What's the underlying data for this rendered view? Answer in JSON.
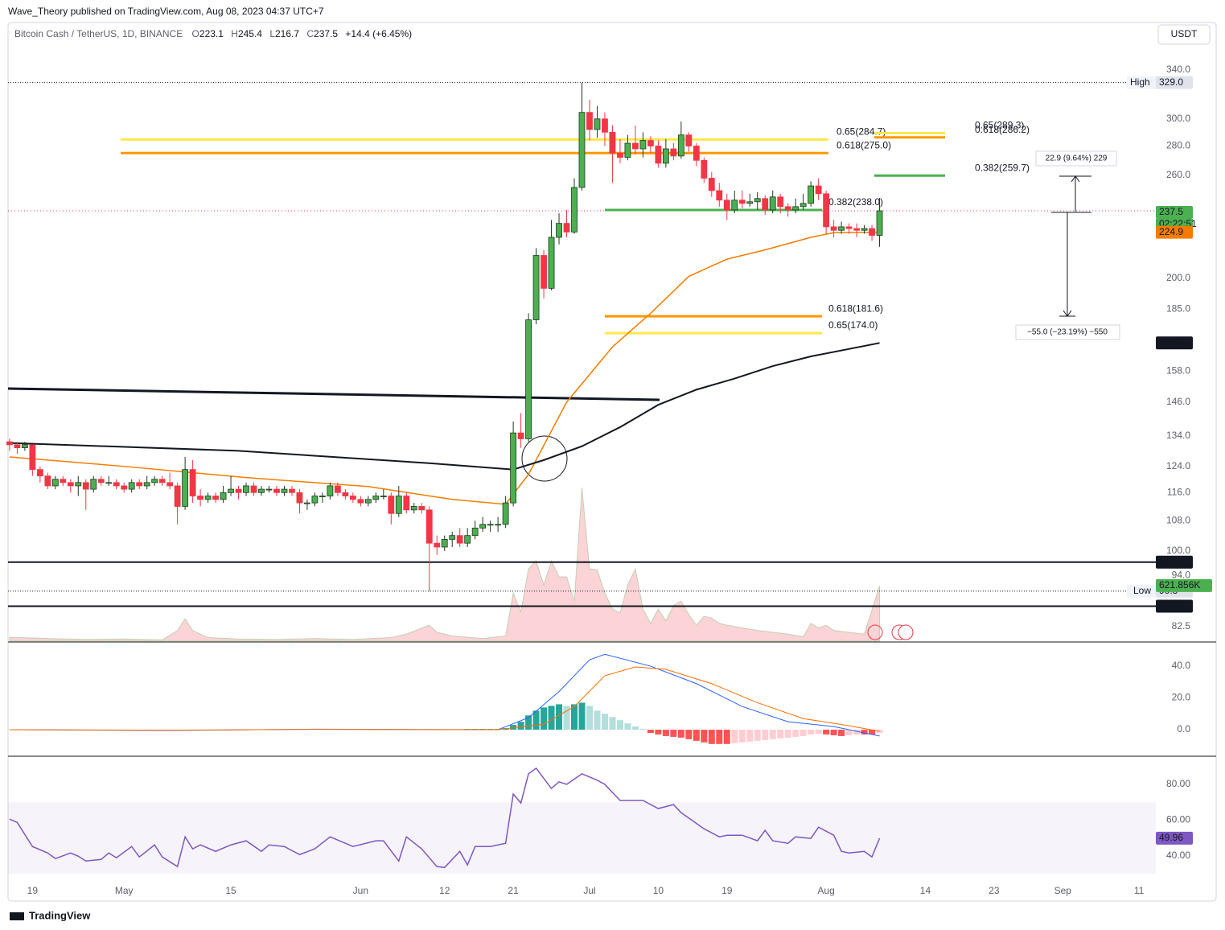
{
  "header": {
    "publisher": "Wave_Theory published on TradingView.com, Aug 08, 2023 04:37 UTC+7",
    "symbol": "Bitcoin Cash / TetherUS, 1D, BINANCE",
    "ohlc_letters": [
      "O",
      "H",
      "L",
      "C"
    ],
    "change": "+14.4 (+6.45%)",
    "currency": "USDT",
    "footer": "TradingView"
  },
  "chart_data": {
    "type": "candlestick",
    "log_scale": true,
    "up_color": "#4caf50",
    "down_color": "#f23645",
    "xlim": [
      -0.2,
      150.2
    ],
    "ylim": [
      79.5,
      359
    ],
    "xticks": [
      {
        "value": 3,
        "label": "19"
      },
      {
        "value": 15,
        "label": "May"
      },
      {
        "value": 29,
        "label": "15"
      },
      {
        "value": 46,
        "label": "Jun"
      },
      {
        "value": 57,
        "label": "12"
      },
      {
        "value": 66,
        "label": "21"
      },
      {
        "value": 76,
        "label": "Jul"
      },
      {
        "value": 85,
        "label": "10"
      },
      {
        "value": 94,
        "label": "19"
      },
      {
        "value": 107,
        "label": "Aug"
      },
      {
        "value": 120,
        "label": "14"
      },
      {
        "value": 129,
        "label": "23"
      },
      {
        "value": 138,
        "label": "Sep"
      },
      {
        "value": 148,
        "label": "11"
      }
    ],
    "yticks": [
      {
        "value": 340,
        "label": "340.0"
      },
      {
        "value": 300,
        "label": "300.0"
      },
      {
        "value": 280,
        "label": "280.0"
      },
      {
        "value": 260,
        "label": "260.0"
      },
      {
        "value": 200,
        "label": "200.0"
      },
      {
        "value": 185,
        "label": "185.0"
      },
      {
        "value": 158,
        "label": "158.0"
      },
      {
        "value": 146,
        "label": "146.0"
      },
      {
        "value": 134,
        "label": "134.0"
      },
      {
        "value": 124,
        "label": "124.0"
      },
      {
        "value": 116,
        "label": "116.0"
      },
      {
        "value": 108,
        "label": "108.0"
      },
      {
        "value": 100,
        "label": "100.0"
      },
      {
        "value": 94,
        "label": "94.0"
      },
      82.5
    ],
    "ohlc": [
      [
        132,
        133,
        129,
        131
      ],
      [
        131,
        132,
        128,
        130
      ],
      [
        130,
        132,
        129,
        131
      ],
      [
        131,
        131,
        121,
        123
      ],
      [
        123,
        124,
        119,
        121
      ],
      [
        121,
        122,
        117,
        118
      ],
      [
        118,
        121,
        117,
        120
      ],
      [
        120,
        121,
        118,
        119
      ],
      [
        119,
        120,
        116,
        118
      ],
      [
        118,
        121,
        115,
        119
      ],
      [
        119,
        120,
        111,
        117
      ],
      [
        117,
        121,
        116,
        120
      ],
      [
        120,
        121,
        118,
        119
      ],
      [
        119,
        121,
        118,
        119
      ],
      [
        119,
        120,
        117,
        118
      ],
      [
        118,
        119,
        116,
        117
      ],
      [
        117,
        120,
        116,
        119
      ],
      [
        119,
        120,
        117,
        118
      ],
      [
        118,
        121,
        117,
        119
      ],
      [
        119,
        121,
        118,
        120
      ],
      [
        120,
        121,
        118,
        119
      ],
      [
        119,
        122,
        117,
        118
      ],
      [
        118,
        119,
        107,
        112
      ],
      [
        112,
        127,
        111,
        123
      ],
      [
        123,
        126,
        113,
        115
      ],
      [
        115,
        117,
        112,
        114
      ],
      [
        114,
        116,
        113,
        115
      ],
      [
        115,
        116,
        113,
        114
      ],
      [
        114,
        118,
        113,
        116
      ],
      [
        116,
        121,
        115,
        117
      ],
      [
        117,
        118,
        114,
        116
      ],
      [
        116,
        119,
        115,
        118
      ],
      [
        118,
        119,
        115,
        116
      ],
      [
        116,
        118,
        115,
        117
      ],
      [
        117,
        118,
        116,
        117
      ],
      [
        117,
        118,
        115,
        116
      ],
      [
        116,
        118,
        115,
        117
      ],
      [
        117,
        118,
        115,
        116
      ],
      [
        116,
        117,
        110,
        113
      ],
      [
        113,
        114,
        111,
        113
      ],
      [
        113,
        116,
        112,
        115
      ],
      [
        115,
        116,
        113,
        115
      ],
      [
        115,
        119,
        114,
        118
      ],
      [
        118,
        119,
        115,
        116
      ],
      [
        116,
        117,
        114,
        115
      ],
      [
        115,
        116,
        113,
        114
      ],
      [
        114,
        115,
        112,
        113
      ],
      [
        113,
        115,
        112,
        114
      ],
      [
        114,
        116,
        113,
        115
      ],
      [
        115,
        117,
        114,
        115
      ],
      [
        115,
        116,
        107,
        110
      ],
      [
        110,
        118,
        109,
        115
      ],
      [
        115,
        116,
        110,
        111
      ],
      [
        111,
        113,
        110,
        112
      ],
      [
        112,
        113,
        110,
        111
      ],
      [
        111,
        112,
        90.3,
        102
      ],
      [
        102,
        104,
        99,
        101
      ],
      [
        101,
        104,
        100,
        103
      ],
      [
        103,
        105,
        101,
        104
      ],
      [
        104,
        106,
        101,
        102
      ],
      [
        102,
        106,
        101,
        104
      ],
      [
        104,
        108,
        103,
        106
      ],
      [
        106,
        109,
        105,
        107
      ],
      [
        107,
        108,
        105,
        107
      ],
      [
        107,
        109,
        105,
        107
      ],
      [
        107,
        115,
        106,
        113
      ],
      [
        113,
        139,
        112,
        135
      ],
      [
        135,
        142,
        130,
        133
      ],
      [
        133,
        183,
        132,
        180
      ],
      [
        180,
        216,
        178,
        212
      ],
      [
        212,
        215,
        190,
        195
      ],
      [
        195,
        232,
        194,
        222
      ],
      [
        222,
        236,
        218,
        230
      ],
      [
        230,
        238,
        222,
        225
      ],
      [
        225,
        258,
        224,
        252
      ],
      [
        252,
        329,
        250,
        305
      ],
      [
        305,
        315,
        284,
        292
      ],
      [
        292,
        310,
        286,
        300
      ],
      [
        300,
        305,
        280,
        290
      ],
      [
        290,
        295,
        255,
        275
      ],
      [
        275,
        285,
        268,
        272
      ],
      [
        272,
        288,
        270,
        282
      ],
      [
        282,
        295,
        274,
        278
      ],
      [
        278,
        290,
        272,
        284
      ],
      [
        284,
        287,
        275,
        280
      ],
      [
        280,
        284,
        265,
        268
      ],
      [
        268,
        285,
        265,
        278
      ],
      [
        278,
        282,
        270,
        273
      ],
      [
        273,
        298,
        271,
        288
      ],
      [
        288,
        290,
        276,
        280
      ],
      [
        280,
        282,
        266,
        270
      ],
      [
        270,
        272,
        255,
        258
      ],
      [
        258,
        262,
        246,
        250
      ],
      [
        250,
        255,
        240,
        244
      ],
      [
        244,
        248,
        232,
        238
      ],
      [
        238,
        250,
        236,
        244
      ],
      [
        244,
        250,
        239,
        242
      ],
      [
        242,
        248,
        240,
        243
      ],
      [
        243,
        249,
        238,
        245
      ],
      [
        245,
        247,
        235,
        238
      ],
      [
        238,
        250,
        236,
        246
      ],
      [
        246,
        248,
        236,
        240
      ],
      [
        240,
        242,
        234,
        238
      ],
      [
        238,
        245,
        236,
        240
      ],
      [
        240,
        248,
        238,
        242
      ],
      [
        242,
        256,
        240,
        253
      ],
      [
        253,
        258,
        244,
        248
      ],
      [
        248,
        250,
        224,
        228
      ],
      [
        228,
        232,
        222,
        226
      ],
      [
        226,
        231,
        224,
        228
      ],
      [
        228,
        230,
        224,
        227
      ],
      [
        227,
        230,
        222,
        226
      ],
      [
        226,
        229,
        224,
        227
      ],
      [
        227,
        229,
        220,
        223.1
      ],
      [
        223.1,
        245.4,
        216.7,
        237.5
      ]
    ],
    "moving_averages": [
      {
        "color": "#f57c00",
        "x": [
          0,
          15,
          31,
          47,
          58,
          65,
          68,
          73,
          79,
          84,
          89,
          94,
          99,
          105,
          108,
          114
        ],
        "values": [
          127,
          124,
          120.5,
          117.8,
          114,
          112.6,
          121.5,
          146,
          168,
          183,
          201,
          210,
          215,
          222,
          224.6,
          224.9
        ]
      },
      {
        "color": "#131722",
        "x": [
          0,
          30,
          55,
          66,
          70,
          75,
          80,
          85,
          90,
          95,
          100,
          105,
          114
        ],
        "values": [
          131.6,
          129,
          125,
          123,
          126,
          130.5,
          137,
          145,
          150.7,
          155,
          160,
          164,
          169.7
        ]
      }
    ],
    "price_lines": [
      {
        "value": 97.2,
        "color": "#131722"
      },
      {
        "value": 86.9,
        "color": "#131722"
      }
    ],
    "badges": [
      {
        "value": 224.9,
        "color": "#f57c00"
      },
      {
        "value": 169.7,
        "color": "#131722"
      }
    ],
    "timer": "02:22:51",
    "high_marker": {
      "text": "High",
      "value": 329,
      "label": "329.0"
    },
    "low_marker": {
      "text": "Low",
      "value": 90.3
    },
    "fib_levels": [
      {
        "value": 284.7,
        "label": "0.65(284.7)",
        "color": "#ffe74c"
      },
      {
        "value": 275.0,
        "label": "0.618(275.0)",
        "color": "#ff9800"
      },
      {
        "value": 238.0,
        "label": "0.382(238.0)",
        "color": "#4caf50"
      },
      {
        "value": 181.6,
        "label": "0.618(181.6)",
        "color": "#ff9800"
      },
      {
        "value": 174.0,
        "label": "0.65(174.0)",
        "color": "#ffe74c"
      },
      {
        "value": 289.3,
        "label": "0.65(289.3)",
        "color": "#ffe74c"
      },
      {
        "value": 286.2,
        "label": "0.618(286.2)",
        "color": "#ff9800"
      },
      {
        "value": 259.7,
        "label": "0.382(259.7)",
        "color": "#4caf50"
      }
    ],
    "measures": [
      "22.9 (9.64%) 229",
      "−55.0 (−23.19%) −550"
    ],
    "volume": {
      "ylim": [
        0,
        1800000
      ],
      "x": [
        0,
        5,
        10,
        15,
        20,
        22,
        23,
        24,
        26,
        30,
        35,
        40,
        45,
        50,
        52,
        55,
        56,
        58,
        62,
        65,
        66,
        67,
        68,
        69,
        70,
        71,
        72,
        73,
        74,
        75,
        76,
        77,
        78,
        79,
        80,
        81,
        82,
        83,
        84,
        85,
        86,
        87,
        88,
        89,
        90,
        91,
        92,
        93,
        94,
        96,
        98,
        100,
        102,
        104,
        105,
        106,
        107,
        108,
        110,
        112,
        114
      ],
      "values": [
        45000,
        30000,
        20000,
        25000,
        15000,
        120000,
        250000,
        120000,
        40000,
        25000,
        20000,
        30000,
        20000,
        40000,
        80000,
        180000,
        100000,
        60000,
        30000,
        60000,
        540000,
        330000,
        810000,
        900000,
        630000,
        900000,
        720000,
        720000,
        450000,
        1720000,
        810000,
        800000,
        540000,
        360000,
        320000,
        630000,
        810000,
        360000,
        200000,
        360000,
        230000,
        400000,
        450000,
        300000,
        180000,
        280000,
        260000,
        200000,
        180000,
        150000,
        120000,
        100000,
        80000,
        50000,
        200000,
        150000,
        180000,
        120000,
        100000,
        80000,
        621856
      ],
      "value_labels": {
        "60": "621.856K"
      }
    },
    "macd": {
      "ylim": [
        -16.7,
        54.2
      ],
      "yticks": [
        {
          "value": 40,
          "label": "40.0"
        },
        {
          "value": 20,
          "label": "20.0"
        },
        {
          "value": 0,
          "label": "0.0"
        }
      ],
      "macd_line": {
        "color": "#2962ff",
        "x": [
          0,
          20,
          40,
          64,
          68,
          72,
          76,
          78,
          84,
          90,
          96,
          102,
          108,
          114
        ],
        "values": [
          0,
          -0.5,
          0.3,
          0,
          7.6,
          24,
          44,
          47.5,
          40,
          29,
          14.6,
          5,
          2,
          -4
        ]
      },
      "signal_line": {
        "color": "#ff6d00",
        "x": [
          0,
          20,
          40,
          64,
          70,
          74,
          78,
          82,
          86,
          92,
          98,
          104,
          110,
          114
        ],
        "values": [
          0,
          -0.3,
          0.2,
          0,
          3.5,
          14.6,
          34,
          39.5,
          38,
          29,
          17,
          7,
          2.5,
          -1
        ]
      },
      "histogram": {
        "x": [
          60,
          61,
          62,
          63,
          64,
          65,
          66,
          67,
          68,
          69,
          70,
          71,
          72,
          73,
          74,
          75,
          76,
          77,
          78,
          79,
          80,
          81,
          82,
          83,
          84,
          85,
          86,
          87,
          88,
          89,
          90,
          91,
          92,
          93,
          94,
          95,
          96,
          97,
          98,
          99,
          100,
          101,
          102,
          103,
          104,
          105,
          106,
          107,
          108,
          109,
          110,
          111,
          112,
          113,
          114
        ],
        "values": [
          0.5,
          0.5,
          0.5,
          0.5,
          0.5,
          1,
          3,
          5,
          9,
          12,
          14,
          15,
          16,
          15,
          16,
          17,
          15,
          12,
          10,
          8,
          6,
          4,
          2,
          0.5,
          -2,
          -3,
          -4,
          -4.5,
          -5,
          -6,
          -7,
          -8,
          -9,
          -9,
          -9,
          -8.5,
          -8,
          -7.5,
          -7,
          -6.5,
          -6,
          -5.5,
          -5,
          -4.5,
          -4,
          -3,
          -2.5,
          -3,
          -3.5,
          -4,
          -3.5,
          -3,
          -3,
          -3,
          -2
        ]
      }
    },
    "rsi": {
      "color": "#7e57c2",
      "ylim": [
        25.2,
        95.7
      ],
      "band": [
        30,
        70
      ],
      "yticks": [
        {
          "value": 80,
          "label": "80.00"
        },
        {
          "value": 60,
          "label": "60.00"
        },
        {
          "value": 40,
          "label": "40.00"
        }
      ],
      "x": [
        0,
        1,
        3,
        5,
        6,
        8,
        9,
        10,
        12,
        13,
        14,
        16,
        17,
        19,
        20,
        22,
        23,
        24,
        25,
        27,
        29,
        31,
        33,
        34,
        36,
        38,
        40,
        42,
        45,
        48,
        49,
        51,
        52,
        54,
        56,
        57,
        59,
        60,
        61,
        63,
        65,
        66,
        67,
        68,
        69,
        71,
        72,
        73,
        75,
        77,
        78,
        80,
        83,
        85,
        87,
        88,
        91,
        93,
        94,
        96,
        98,
        99,
        100,
        102,
        103,
        105,
        106,
        108,
        109,
        110,
        112,
        113,
        114
      ],
      "values": [
        60.6,
        58.8,
        45.3,
        41.7,
        38.6,
        41.7,
        39.9,
        37.2,
        38.1,
        41.7,
        39,
        45.3,
        39.5,
        46.2,
        39.5,
        34.1,
        50.7,
        44,
        46.2,
        42.6,
        46.2,
        48.5,
        42.6,
        46.2,
        45.3,
        40.8,
        44,
        50.7,
        45.3,
        48.5,
        48.5,
        37.2,
        50.7,
        44,
        34.1,
        33.6,
        42.6,
        35,
        45.3,
        45.3,
        47.1,
        74.6,
        69.6,
        85.9,
        89,
        77.7,
        81.4,
        80,
        85.9,
        82.3,
        80,
        71,
        71,
        66.5,
        68.7,
        64.2,
        55.2,
        50.7,
        51.6,
        51.6,
        48.5,
        54.3,
        48.5,
        47.1,
        50.7,
        49.8,
        56.1,
        51.6,
        42.6,
        41.7,
        42.6,
        39.5,
        49.96
      ]
    }
  }
}
